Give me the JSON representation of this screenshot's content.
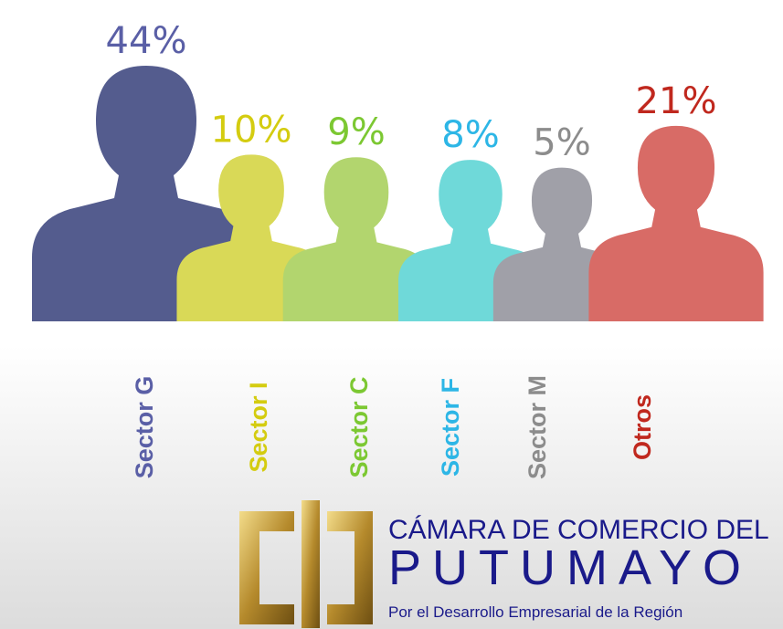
{
  "chart_data": {
    "type": "pictorial",
    "categories": [
      "Sector G",
      "Sector I",
      "Sector C",
      "Sector F",
      "Sector M",
      "Otros"
    ],
    "values": [
      44,
      10,
      9,
      8,
      5,
      21
    ],
    "value_labels": [
      "44%",
      "10%",
      "9%",
      "8%",
      "5%",
      "21%"
    ],
    "colors": [
      "#545c8e",
      "#d9d957",
      "#b2d56e",
      "#6fd9d9",
      "#a0a0a8",
      "#d86b66"
    ],
    "label_colors": [
      "#5a5fa6",
      "#d4cc10",
      "#7cc832",
      "#2db6e6",
      "#8c8c8c",
      "#c0281e"
    ]
  },
  "logo": {
    "line1": "CÁMARA DE COMERCIO DEL",
    "line2": "PUTUMAYO",
    "line3": "Por el Desarrollo Empresarial de la Región"
  }
}
